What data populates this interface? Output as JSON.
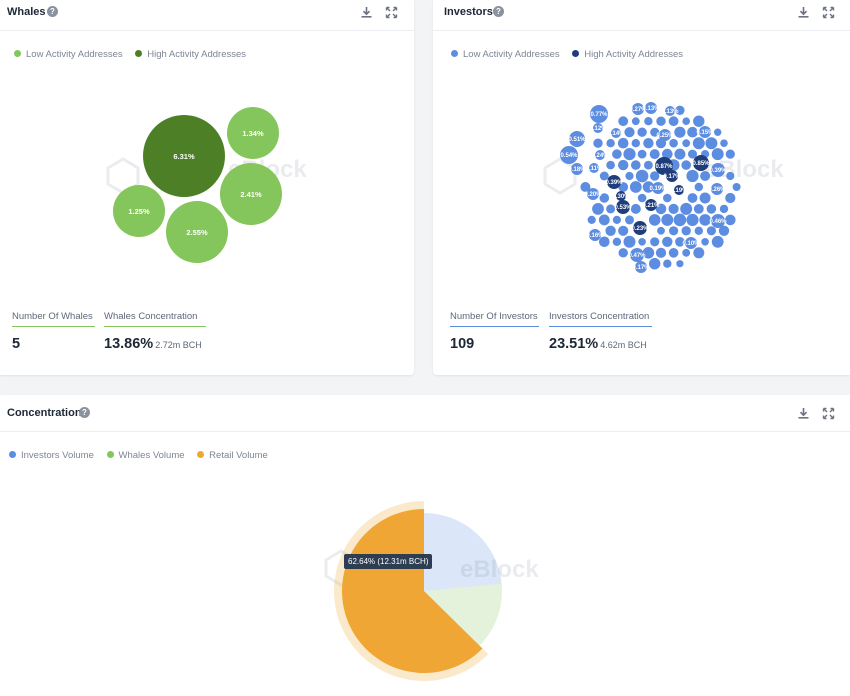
{
  "whales": {
    "title": "Whales",
    "legend": {
      "low": "Low Activity Addresses",
      "high": "High Activity Addresses"
    },
    "colors": {
      "low": "#84c65b",
      "high": "#4c7f26"
    },
    "stats": {
      "count_label": "Number Of Whales",
      "count_value": "5",
      "concentration_label": "Whales Concentration",
      "concentration_value": "13.86%",
      "concentration_sub": "2.72m BCH"
    }
  },
  "investors": {
    "title": "Investors",
    "legend": {
      "low": "Low Activity Addresses",
      "high": "High Activity Addresses"
    },
    "colors": {
      "low": "#5d8de0",
      "high": "#1f3d7a"
    },
    "stats": {
      "count_label": "Number Of Investors",
      "count_value": "109",
      "concentration_label": "Investors Concentration",
      "concentration_value": "23.51%",
      "concentration_sub": "4.62m BCH"
    }
  },
  "concentration": {
    "title": "Concentration",
    "legend": {
      "investors": "Investors Volume",
      "whales": "Whales Volume",
      "retail": "Retail Volume"
    },
    "colors": {
      "investors": "#5d8de0",
      "whales": "#84c65b",
      "retail": "#f0a634"
    },
    "tooltip": "62.64% (12.31m BCH)"
  },
  "watermark": "eBlock",
  "icons": {
    "help": "help-icon",
    "download": "download-icon",
    "expand": "expand-icon"
  },
  "chart_data": [
    {
      "type": "scatter",
      "subtype": "bubble",
      "title": "Whales",
      "series": [
        {
          "name": "Low Activity Addresses",
          "values": [
            "1.34%",
            "2.41%",
            "2.55%",
            "1.25%"
          ]
        },
        {
          "name": "High Activity Addresses",
          "values": [
            "6.31%"
          ]
        }
      ]
    },
    {
      "type": "scatter",
      "subtype": "bubble",
      "title": "Investors",
      "series": [
        {
          "name": "Low Activity Addresses",
          "values": [
            "0.77%",
            "0.27%",
            "0.13%",
            "0.51%",
            "0.54%",
            "0.18%",
            "0.11%",
            "0.15%",
            "0.39%",
            "0.26%",
            "0.10%",
            "0.46%",
            "0.25%",
            "0.14%",
            "0.12%",
            "0.16%",
            "0.47%",
            "0.17%",
            "0.24%",
            "0.20%",
            "0.19%",
            "0.13%"
          ]
        },
        {
          "name": "High Activity Addresses",
          "values": [
            "0.87%",
            "0.85%",
            "0.39%",
            "0.53%",
            "0.30%",
            "0.21%",
            "0.23%",
            "0.17%",
            "0.19%"
          ]
        }
      ]
    },
    {
      "type": "pie",
      "title": "Concentration",
      "series": [
        {
          "name": "Investors Volume",
          "value": 23.51
        },
        {
          "name": "Whales Volume",
          "value": 13.86
        },
        {
          "name": "Retail Volume",
          "value": 62.64
        }
      ]
    }
  ]
}
